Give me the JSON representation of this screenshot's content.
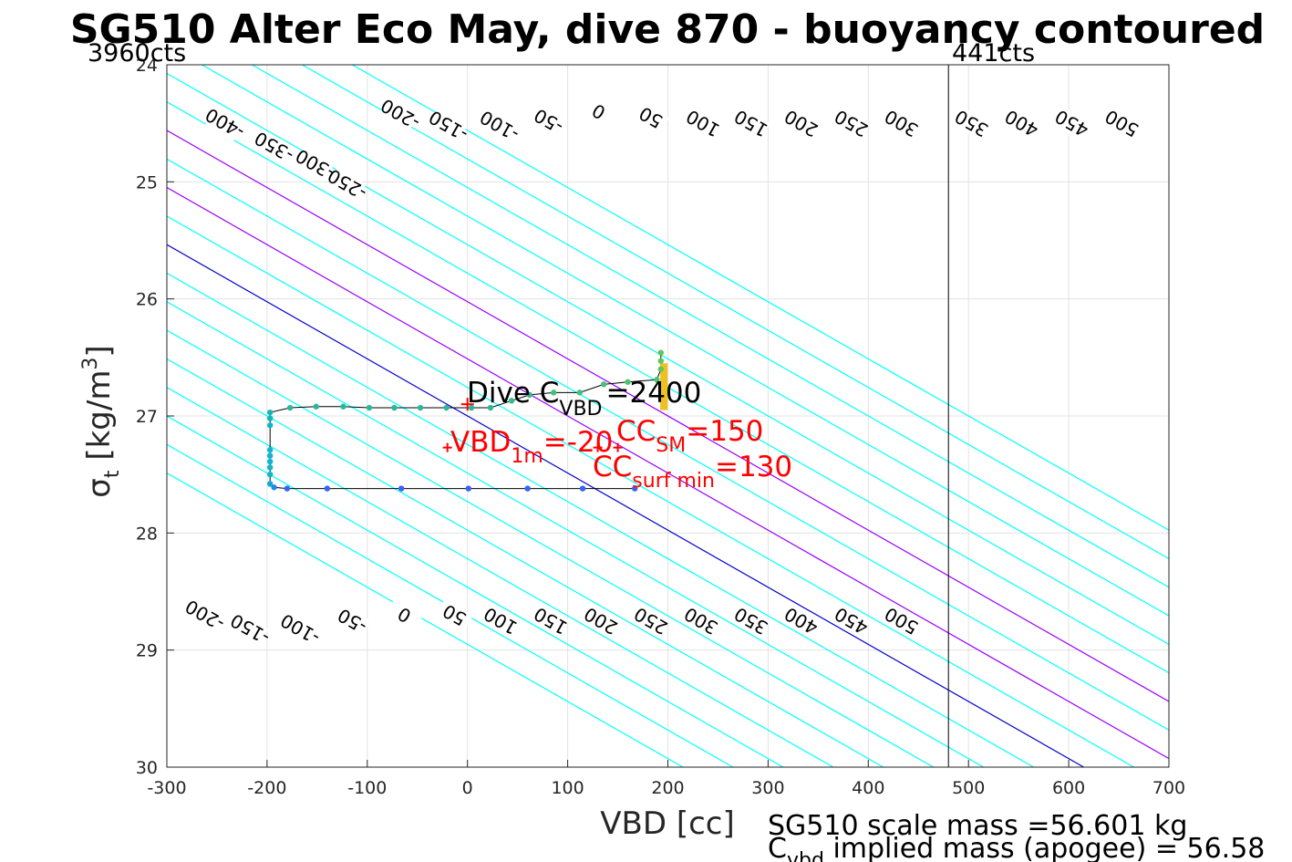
{
  "chart_data": {
    "type": "scatter",
    "title": "SG510 Alter Eco May, dive 870 - buoyancy contoured",
    "xlabel": "VBD [cc]",
    "ylabel_main": "σ",
    "ylabel_sub": "t",
    "ylabel_units": " [kg/m",
    "ylabel_sup": "3",
    "ylabel_close": "]",
    "xlim": [
      -300,
      700
    ],
    "ylim": [
      24,
      30
    ],
    "y_reversed": true,
    "grid": true,
    "x_ticks": [
      -300,
      -200,
      -100,
      0,
      100,
      200,
      300,
      400,
      500,
      600,
      700
    ],
    "x_tick_labels": [
      "-300",
      "-200",
      "-100",
      "0",
      "100",
      "200",
      "300",
      "400",
      "500",
      "600",
      "700"
    ],
    "y_ticks": [
      24,
      25,
      26,
      27,
      28,
      29,
      30
    ],
    "y_tick_labels": [
      "24",
      "25",
      "26",
      "27",
      "28",
      "29",
      "30"
    ],
    "corner_left": "3960cts",
    "corner_right": "441cts",
    "vbd_limit_line_x": 480,
    "contour_slope_cc_per_kgm3": 205,
    "contours": [
      {
        "level": -400,
        "color": "#00ffff",
        "label": "-400",
        "label_point": [
          -242,
          24.5
        ]
      },
      {
        "level": -350,
        "color": "#00ffff",
        "label": "-350",
        "label_point": [
          -193,
          24.7
        ]
      },
      {
        "level": -300,
        "color": "#00ffff",
        "label": "-300",
        "label_point": [
          -152,
          24.85
        ]
      },
      {
        "level": -250,
        "color": "#00ffff",
        "label": "-250",
        "label_point": [
          -120,
          25.02
        ],
        "label2": "-200",
        "label2_point": [
          -262,
          28.7
        ]
      },
      {
        "level": -200,
        "color": "#00ffff",
        "label": "-200",
        "label_point": [
          -67,
          24.42
        ],
        "label2": "-150",
        "label2_point": [
          -217,
          28.82
        ]
      },
      {
        "level": -150,
        "color": "#00ffff",
        "label": "-150",
        "label_point": [
          -19,
          24.52
        ],
        "label2": "-100",
        "label2_point": [
          -167,
          28.82
        ]
      },
      {
        "level": -100,
        "color": "#00ffff",
        "label": "-100",
        "label_point": [
          32,
          24.52
        ],
        "label2": "-50",
        "label2_point": [
          -115,
          28.75
        ]
      },
      {
        "level": -50,
        "color": "#00ffff",
        "label": "-50",
        "label_point": [
          81,
          24.48
        ],
        "label2": "0",
        "label2_point": [
          -63,
          28.7
        ]
      },
      {
        "level": 0,
        "color": "#0000cd",
        "label": "0",
        "label_point": [
          131,
          24.4
        ],
        "label2": "50",
        "label2_point": [
          -13,
          28.7
        ]
      },
      {
        "level": 50,
        "color": "#00ffff",
        "label": "50",
        "label_point": [
          183,
          24.45
        ],
        "label2": "100",
        "label2_point": [
          33,
          28.75
        ]
      },
      {
        "level": 100,
        "color": "#9900ff",
        "label": "100",
        "label_point": [
          235,
          24.5
        ],
        "label2": "150",
        "label2_point": [
          83,
          28.75
        ]
      },
      {
        "level": 150,
        "color": "#00ffff",
        "label": "150",
        "label_point": [
          283,
          24.5
        ],
        "label2": "200",
        "label2_point": [
          133,
          28.75
        ]
      },
      {
        "level": 200,
        "color": "#9900ff",
        "label": "200",
        "label_point": [
          333,
          24.5
        ],
        "label2": "250",
        "label2_point": [
          183,
          28.75
        ]
      },
      {
        "level": 250,
        "color": "#00ffff",
        "label": "250",
        "label_point": [
          383,
          24.5
        ],
        "label2": "300",
        "label2_point": [
          233,
          28.75
        ]
      },
      {
        "level": 300,
        "color": "#00ffff",
        "label": "300",
        "label_point": [
          433,
          24.5
        ],
        "label2": "350",
        "label2_point": [
          283,
          28.75
        ]
      },
      {
        "level": 350,
        "color": "#00ffff",
        "label": "350",
        "label_point": [
          503,
          24.5
        ],
        "label2": "400",
        "label2_point": [
          333,
          28.75
        ]
      },
      {
        "level": 400,
        "color": "#00ffff",
        "label": "400",
        "label_point": [
          553,
          24.5
        ],
        "label2": "450",
        "label2_point": [
          383,
          28.75
        ]
      },
      {
        "level": 450,
        "color": "#00ffff",
        "label": "450",
        "label_point": [
          603,
          24.5
        ],
        "label2": "500",
        "label2_point": [
          433,
          28.75
        ]
      },
      {
        "level": 500,
        "color": "#00ffff",
        "label": "500",
        "label_point": [
          653,
          24.5
        ]
      }
    ],
    "track": [
      {
        "x": 167,
        "y": 27.62
      },
      {
        "x": 115,
        "y": 27.62
      },
      {
        "x": 60,
        "y": 27.62
      },
      {
        "x": 1,
        "y": 27.62
      },
      {
        "x": -66,
        "y": 27.62
      },
      {
        "x": -140,
        "y": 27.62
      },
      {
        "x": -180,
        "y": 27.62
      },
      {
        "x": -193,
        "y": 27.61
      },
      {
        "x": -197,
        "y": 27.58
      },
      {
        "x": -197,
        "y": 27.5
      },
      {
        "x": -197,
        "y": 27.44
      },
      {
        "x": -197,
        "y": 27.39
      },
      {
        "x": -197,
        "y": 27.34
      },
      {
        "x": -197,
        "y": 27.29
      },
      {
        "x": -197,
        "y": 27.08
      },
      {
        "x": -197,
        "y": 27.02
      },
      {
        "x": -197,
        "y": 26.97
      },
      {
        "x": -177,
        "y": 26.93
      },
      {
        "x": -151,
        "y": 26.92
      },
      {
        "x": -124,
        "y": 26.92
      },
      {
        "x": -98,
        "y": 26.93
      },
      {
        "x": -73,
        "y": 26.93
      },
      {
        "x": -47,
        "y": 26.93
      },
      {
        "x": -21,
        "y": 26.93
      },
      {
        "x": 4,
        "y": 26.93
      },
      {
        "x": 23,
        "y": 26.93
      },
      {
        "x": 44,
        "y": 26.87
      },
      {
        "x": 62,
        "y": 26.82
      },
      {
        "x": 86,
        "y": 26.8
      },
      {
        "x": 112,
        "y": 26.8
      },
      {
        "x": 136,
        "y": 26.73
      },
      {
        "x": 160,
        "y": 26.71
      },
      {
        "x": 189,
        "y": 26.69
      },
      {
        "x": 193,
        "y": 26.6
      },
      {
        "x": 193,
        "y": 26.53
      },
      {
        "x": 193,
        "y": 26.46
      }
    ],
    "track_color": "#000000",
    "point_colors": [
      "#3a64f0",
      "#3a64f0",
      "#3a64f0",
      "#3a64f0",
      "#3a64f0",
      "#3a64f0",
      "#3a64f0",
      "#1f88e8",
      "#12a5d8",
      "#12b5cc",
      "#12b5cc",
      "#12b5cc",
      "#12b5cc",
      "#12b5cc",
      "#12b5cc",
      "#18b5b5",
      "#18b5b5",
      "#2ab89a",
      "#2ab89a",
      "#2ab89a",
      "#2ab89a",
      "#2ab89a",
      "#2ab89a",
      "#2ab89a",
      "#2ab89a",
      "#2ab89a",
      "#35bc8c",
      "#35bc8c",
      "#42c07c",
      "#42c07c",
      "#42c07c",
      "#4cc470",
      "#4cc470",
      "#5cc85c",
      "#5cc85c",
      "#5cc85c"
    ],
    "apogee_bar": {
      "x": 196,
      "y_top": 26.55,
      "y_bottom": 26.95,
      "color": "#f0c020"
    },
    "red_markers": [
      {
        "x": 0,
        "y": 26.9,
        "size": "large"
      },
      {
        "x": -20,
        "y": 27.27,
        "size": "small"
      },
      {
        "x": 130,
        "y": 27.27,
        "size": "small"
      },
      {
        "x": 150,
        "y": 27.27,
        "size": "small"
      }
    ],
    "annotations": {
      "dive_cvbd_main": "Dive C",
      "dive_cvbd_sub": "VBD",
      "dive_cvbd_value": "=2400",
      "vbd1m_main": "VBD",
      "vbd1m_sub": "1m",
      "vbd1m_value": "=-20",
      "ccsm_main": "CC",
      "ccsm_sub": "SM",
      "ccsm_value": "=150",
      "ccsurf_main": "CC",
      "ccsurf_sub": "surf min",
      "ccsurf_value": "=130"
    },
    "footer_line1": "SG510 scale mass =56.601 kg",
    "footer_line2_main": "C",
    "footer_line2_sub": "vbd",
    "footer_line2_value": " implied mass (apogee) = 56.58"
  }
}
